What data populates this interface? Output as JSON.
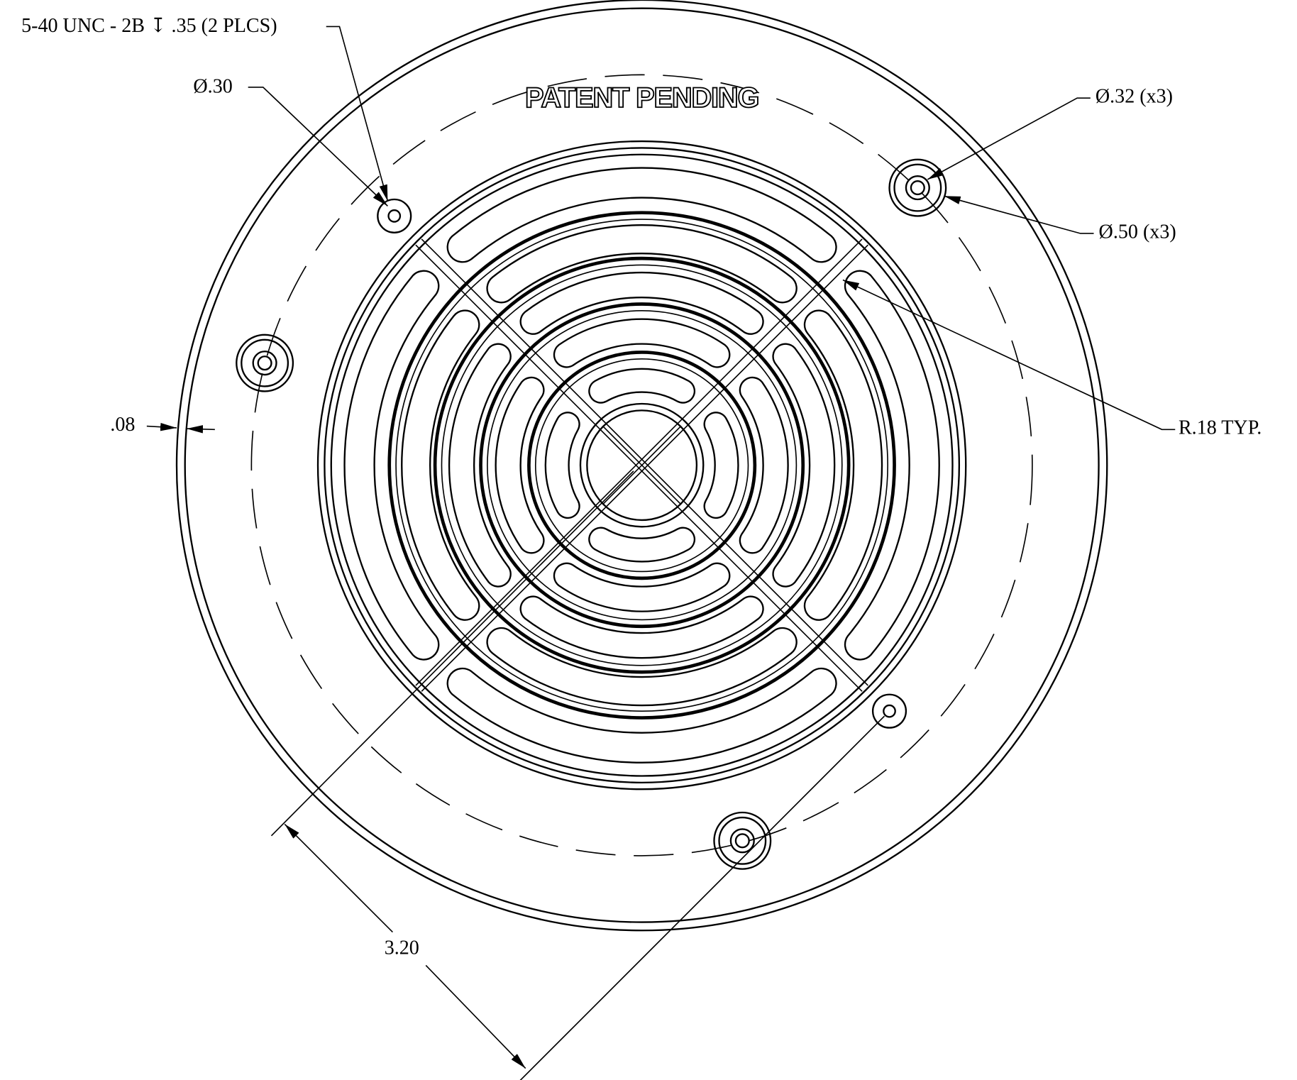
{
  "drawing": {
    "title": "PATENT PENDING",
    "callouts": {
      "thread": "5-40 UNC - 2B ↧ .35 (2 PLCS)",
      "tap_hole": "Ø.30",
      "counterbore_inner": "Ø.32 (x3)",
      "counterbore_outer": "Ø.50 (x3)",
      "radius": "R.18 TYP.",
      "rim": ".08",
      "spacing": "3.20"
    }
  }
}
